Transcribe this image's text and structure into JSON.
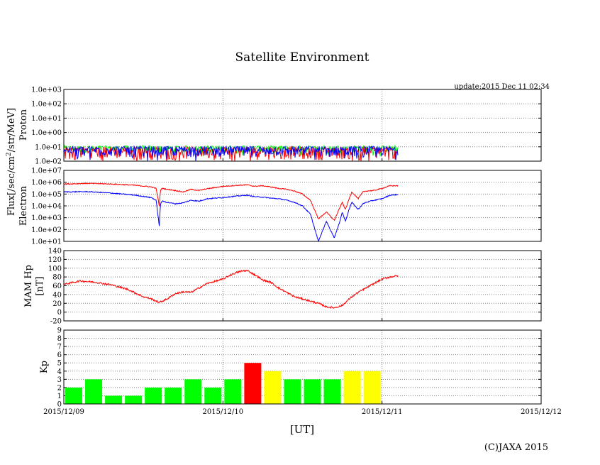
{
  "title": "Satellite Environment",
  "update": "update:2015 Dec 11 02:34",
  "copyright": "(C)JAXA 2015",
  "xlabel": "[UT]",
  "flux_label": {
    "prefix": "Flux[/sec/cm",
    "superscript": "2",
    "suffix": "/str/MeV]"
  },
  "x_ticks": [
    "2015/12/09",
    "2015/12/10",
    "2015/12/11",
    "2015/12/12"
  ],
  "colors": {
    "red": "#ff0000",
    "blue": "#0000ff",
    "green": "#00ff00",
    "yellow": "#ffff00",
    "grid": "#888888"
  },
  "chart_data": [
    {
      "type": "line",
      "title": "Proton",
      "ylabel": "Proton",
      "yscale": "log",
      "ylim": [
        0.01,
        1000
      ],
      "y_ticks": [
        "1.0e-02",
        "1.0e-01",
        "1.0e+00",
        "1.0e+01",
        "1.0e+02",
        "1.0e+03"
      ],
      "x_range_days": [
        0,
        3
      ],
      "data_end_day": 2.1,
      "series": [
        {
          "name": "proton-green",
          "color": "green",
          "level": 0.08,
          "noise_low": 0.04,
          "noise_high": 0.12
        },
        {
          "name": "proton-red",
          "color": "red",
          "level": 0.05,
          "noise_low": 0.012,
          "noise_high": 0.1
        },
        {
          "name": "proton-blue",
          "color": "blue",
          "level": 0.06,
          "noise_low": 0.02,
          "noise_high": 0.11
        }
      ]
    },
    {
      "type": "line",
      "title": "Electron",
      "ylabel": "Electron",
      "yscale": "log",
      "ylim": [
        10,
        10000000
      ],
      "y_ticks": [
        "1.0e+01",
        "1.0e+02",
        "1.0e+03",
        "1.0e+04",
        "1.0e+05",
        "1.0e+06",
        "1.0e+07"
      ],
      "x_range_days": [
        0,
        3
      ],
      "series": [
        {
          "name": "electron-red",
          "color": "red",
          "x": [
            0,
            0.15,
            0.3,
            0.45,
            0.55,
            0.58,
            0.6,
            0.605,
            0.61,
            0.62,
            0.65,
            0.7,
            0.75,
            0.8,
            0.85,
            0.9,
            0.95,
            1.0,
            1.05,
            1.1,
            1.15,
            1.2,
            1.25,
            1.3,
            1.35,
            1.4,
            1.45,
            1.5,
            1.55,
            1.6,
            1.65,
            1.7,
            1.73,
            1.75,
            1.77,
            1.79,
            1.81,
            1.83,
            1.85,
            1.88,
            1.9,
            1.95,
            2.0,
            2.05,
            2.1
          ],
          "y": [
            700000,
            800000,
            700000,
            550000,
            400000,
            300000,
            10000,
            100000,
            250000,
            300000,
            250000,
            200000,
            150000,
            250000,
            200000,
            280000,
            350000,
            450000,
            500000,
            550000,
            600000,
            450000,
            500000,
            400000,
            300000,
            250000,
            180000,
            100000,
            30000,
            800,
            3000,
            600,
            5000,
            20000,
            5000,
            30000,
            150000,
            80000,
            40000,
            150000,
            180000,
            200000,
            300000,
            500000,
            500000
          ]
        },
        {
          "name": "electron-blue",
          "color": "blue",
          "x": [
            0,
            0.15,
            0.3,
            0.45,
            0.55,
            0.58,
            0.6,
            0.605,
            0.61,
            0.62,
            0.65,
            0.7,
            0.75,
            0.8,
            0.85,
            0.9,
            0.95,
            1.0,
            1.05,
            1.1,
            1.15,
            1.2,
            1.25,
            1.3,
            1.35,
            1.4,
            1.45,
            1.5,
            1.55,
            1.6,
            1.65,
            1.7,
            1.73,
            1.75,
            1.77,
            1.79,
            1.81,
            1.83,
            1.85,
            1.88,
            1.9,
            1.95,
            2.0,
            2.05,
            2.1
          ],
          "y": [
            150000,
            160000,
            120000,
            80000,
            50000,
            30000,
            200,
            4000,
            20000,
            25000,
            20000,
            15000,
            18000,
            30000,
            25000,
            40000,
            45000,
            50000,
            60000,
            70000,
            80000,
            60000,
            55000,
            45000,
            40000,
            30000,
            20000,
            10000,
            2000,
            10,
            500,
            20,
            300,
            3000,
            500,
            4000,
            20000,
            10000,
            5000,
            15000,
            20000,
            30000,
            40000,
            80000,
            90000
          ]
        }
      ]
    },
    {
      "type": "line",
      "title": "MAM Hp",
      "ylabel": "MAM Hp",
      "ylabel2": "[nT]",
      "yscale": "linear",
      "ylim": [
        -20,
        140
      ],
      "y_ticks": [
        "-20",
        "0",
        "20",
        "40",
        "60",
        "80",
        "100",
        "120",
        "140"
      ],
      "x_range_days": [
        0,
        3
      ],
      "series": [
        {
          "name": "mam-hp-red",
          "color": "red",
          "x": [
            0,
            0.1,
            0.2,
            0.3,
            0.4,
            0.5,
            0.55,
            0.6,
            0.65,
            0.7,
            0.75,
            0.8,
            0.85,
            0.9,
            1.0,
            1.05,
            1.1,
            1.15,
            1.2,
            1.25,
            1.3,
            1.35,
            1.4,
            1.45,
            1.5,
            1.55,
            1.6,
            1.65,
            1.7,
            1.75,
            1.8,
            1.85,
            1.9,
            1.95,
            2.0,
            2.05,
            2.1
          ],
          "y": [
            63,
            71,
            68,
            62,
            52,
            35,
            30,
            22,
            30,
            42,
            46,
            45,
            55,
            65,
            75,
            85,
            92,
            95,
            85,
            73,
            68,
            55,
            45,
            35,
            30,
            25,
            20,
            12,
            10,
            15,
            32,
            45,
            55,
            65,
            75,
            80,
            83
          ]
        }
      ]
    },
    {
      "type": "bar",
      "title": "Kp",
      "ylabel": "Kp",
      "ylim": [
        0,
        9
      ],
      "y_ticks": [
        "0",
        "1",
        "2",
        "3",
        "4",
        "5",
        "6",
        "7",
        "8",
        "9"
      ],
      "bar_width_hours": 3,
      "values": [
        2,
        3,
        1,
        1,
        2,
        2,
        3,
        2,
        3,
        5,
        4,
        3,
        3,
        3,
        4,
        4
      ],
      "bar_colors": [
        "green",
        "green",
        "green",
        "green",
        "green",
        "green",
        "green",
        "green",
        "green",
        "red",
        "yellow",
        "green",
        "green",
        "green",
        "yellow",
        "yellow"
      ]
    }
  ]
}
